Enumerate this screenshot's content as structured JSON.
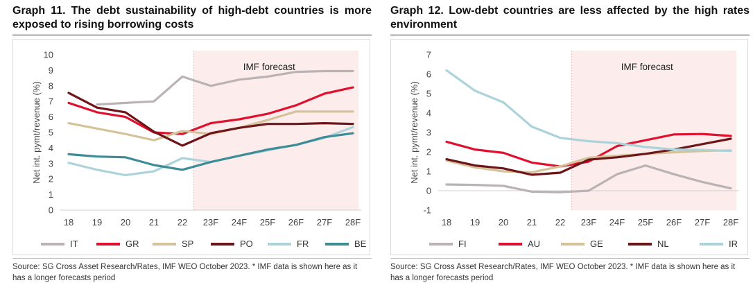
{
  "charts": [
    {
      "title": "Graph 11. The debt sustainability of high-debt countries is more exposed to rising borrowing costs",
      "source": "Source: SG Cross Asset Research/Rates, IMF WEO October 2023. * IMF data is shown here as it has a longer forecasts period",
      "forecast_label": "IMF forecast",
      "legend_x": [
        20,
        100,
        181,
        265,
        347,
        430
      ],
      "chart_data": {
        "type": "line",
        "ylabel": "Net int. pymt/revenue (%)",
        "categories": [
          "18",
          "19",
          "20",
          "21",
          "22",
          "23F",
          "24F",
          "25F",
          "26F",
          "27F",
          "28F"
        ],
        "ylim": [
          0,
          10
        ],
        "yticks": [
          0,
          1,
          2,
          3,
          4,
          5,
          6,
          7,
          8,
          9,
          10
        ],
        "forecast_start": 4.4,
        "forecast_end": 10.2,
        "series": [
          {
            "name": "IT",
            "color": "#bbb3b3",
            "values": [
              null,
              6.8,
              6.9,
              7.0,
              8.6,
              8.0,
              8.4,
              8.6,
              8.9,
              8.95,
              8.95
            ]
          },
          {
            "name": "GR",
            "color": "#e0102f",
            "values": [
              6.9,
              6.3,
              6.0,
              5.0,
              4.9,
              5.6,
              5.85,
              6.2,
              6.75,
              7.5,
              7.9
            ]
          },
          {
            "name": "SP",
            "color": "#d4c29a",
            "values": [
              5.6,
              5.25,
              4.9,
              4.5,
              5.1,
              4.9,
              5.3,
              5.8,
              6.35,
              6.35,
              6.35
            ]
          },
          {
            "name": "PO",
            "color": "#6e1519",
            "values": [
              7.55,
              6.6,
              6.3,
              5.05,
              4.15,
              4.95,
              5.3,
              5.55,
              5.55,
              5.6,
              5.55
            ]
          },
          {
            "name": "FR",
            "color": "#acd3da",
            "values": [
              3.05,
              2.6,
              2.25,
              2.5,
              3.35,
              3.1,
              3.5,
              3.85,
              4.2,
              4.65,
              5.35
            ]
          },
          {
            "name": "BE",
            "color": "#3d8c96",
            "values": [
              3.6,
              3.45,
              3.4,
              2.9,
              2.6,
              3.1,
              3.5,
              3.9,
              4.2,
              4.7,
              4.95
            ]
          }
        ]
      }
    },
    {
      "title": "Graph 12. Low-debt countries are less affected by the high rates environment",
      "source": "Source: SG Cross Asset Research/Rates, IMF WEO October 2023. * IMF data is shown here as it has a longer forecasts period",
      "forecast_label": "IMF forecast",
      "legend_x": [
        35,
        135,
        225,
        322,
        425
      ],
      "chart_data": {
        "type": "line",
        "ylabel": "Net int. pymt/revenue (%)",
        "categories": [
          "18",
          "19",
          "20",
          "21",
          "22",
          "23F",
          "24F",
          "25F",
          "26F",
          "27F",
          "28F"
        ],
        "ylim": [
          -1,
          7
        ],
        "yticks": [
          -1,
          0,
          1,
          2,
          3,
          4,
          5,
          6,
          7
        ],
        "forecast_start": 4.4,
        "forecast_end": 10.2,
        "series": [
          {
            "name": "FI",
            "color": "#bbb3b3",
            "values": [
              0.32,
              0.3,
              0.25,
              -0.05,
              -0.08,
              0.0,
              0.85,
              1.3,
              0.85,
              0.45,
              0.12
            ]
          },
          {
            "name": "AU",
            "color": "#e0102f",
            "values": [
              2.52,
              2.12,
              1.95,
              1.45,
              1.25,
              1.5,
              2.3,
              2.6,
              2.9,
              2.92,
              2.82
            ]
          },
          {
            "name": "GE",
            "color": "#d4c29a",
            "values": [
              1.55,
              1.2,
              1.0,
              0.95,
              1.25,
              1.7,
              1.8,
              1.9,
              1.98,
              2.05,
              2.08
            ]
          },
          {
            "name": "NL",
            "color": "#6e1519",
            "values": [
              1.62,
              1.3,
              1.15,
              0.82,
              0.93,
              1.6,
              1.72,
              1.9,
              2.12,
              2.4,
              2.68
            ]
          },
          {
            "name": "IR",
            "color": "#acd3da",
            "values": [
              6.2,
              5.15,
              4.55,
              3.3,
              2.72,
              2.55,
              2.45,
              2.25,
              2.12,
              2.1,
              2.05
            ]
          }
        ]
      }
    }
  ]
}
